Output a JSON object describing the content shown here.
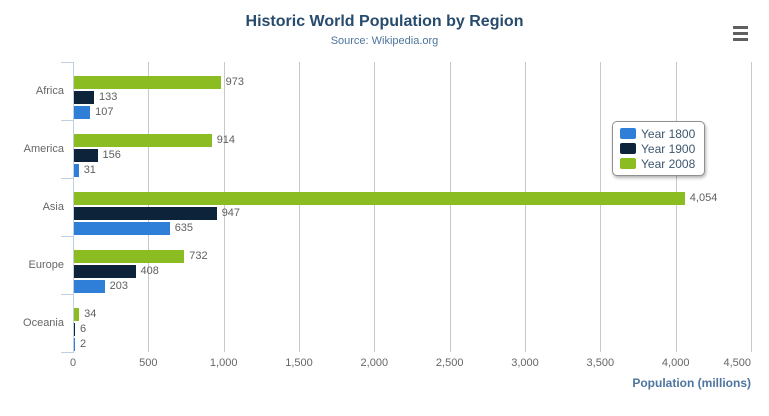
{
  "chart_data": {
    "type": "bar",
    "orientation": "horizontal",
    "title": "Historic World Population by Region",
    "subtitle": "Source: Wikipedia.org",
    "categories": [
      "Africa",
      "America",
      "Asia",
      "Europe",
      "Oceania"
    ],
    "series": [
      {
        "name": "Year 1800",
        "color": "#2f7ed8",
        "values": [
          107,
          31,
          635,
          203,
          2
        ]
      },
      {
        "name": "Year 1900",
        "color": "#0d233a",
        "values": [
          133,
          156,
          947,
          408,
          6
        ]
      },
      {
        "name": "Year 2008",
        "color": "#8bbc21",
        "values": [
          973,
          914,
          4054,
          732,
          34
        ]
      }
    ],
    "series_display_order_top_to_bottom": [
      "Year 2008",
      "Year 1900",
      "Year 1800"
    ],
    "data_labels": {
      "Africa": [
        "973",
        "133",
        "107"
      ],
      "America": [
        "914",
        "156",
        "31"
      ],
      "Asia": [
        "4,054",
        "947",
        "635"
      ],
      "Europe": [
        "732",
        "408",
        "203"
      ],
      "Oceania": [
        "34",
        "6",
        "2"
      ]
    },
    "xlabel": "Population (millions)",
    "xlim": [
      0,
      4500
    ],
    "x_ticks": [
      "0",
      "500",
      "1,000",
      "1,500",
      "2,000",
      "2,500",
      "3,000",
      "3,500",
      "4,000",
      "4,500"
    ],
    "grid": true,
    "legend_position": "right",
    "data_labels_visible": true
  },
  "toolbar": {
    "context_menu_icon": "hamburger-menu"
  },
  "colors": {
    "title": "#274b6d",
    "subtitle": "#4d759e",
    "axis_title": "#4d759e",
    "tick_label": "#666666",
    "data_label": "#606060",
    "gridline": "#c8c8c8",
    "axis_line": "#c0d0e0",
    "legend_border": "#909090",
    "legend_text": "#3e576f",
    "background": "#ffffff"
  }
}
